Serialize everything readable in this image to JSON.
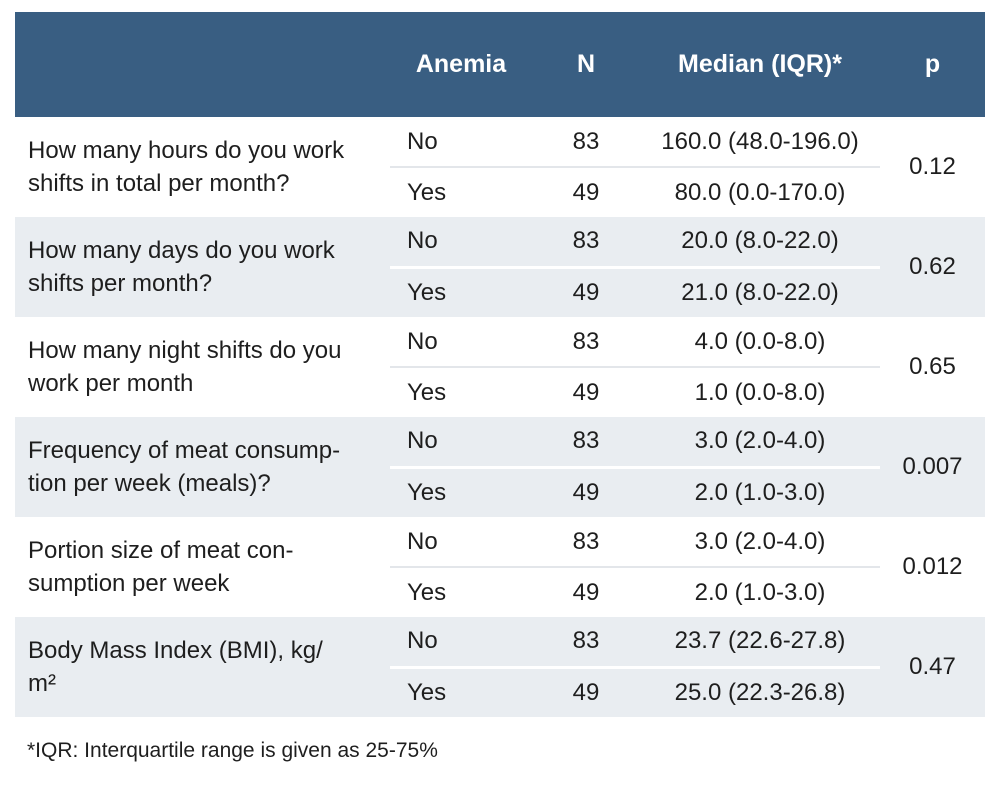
{
  "colors": {
    "header_bg": "#395e82",
    "header_text": "#ffffff",
    "row_alt_bg": "#e9edf1",
    "divider_on_white": "#e3e6ea",
    "divider_on_gray": "#ffffff",
    "body_text": "#1e1e1e"
  },
  "table": {
    "headers": {
      "question": "",
      "anemia": "Anemia",
      "n": "N",
      "median": "Median (IQR)*",
      "p": "p"
    },
    "groups": [
      {
        "question": "How many hours do you work\nshifts in total per month?",
        "p": "0.12",
        "rows": [
          {
            "anemia": "No",
            "n": "83",
            "median": "160.0 (48.0-196.0)"
          },
          {
            "anemia": "Yes",
            "n": "49",
            "median": "80.0 (0.0-170.0)"
          }
        ]
      },
      {
        "question": "How many days do you work\nshifts per month?",
        "p": "0.62",
        "rows": [
          {
            "anemia": "No",
            "n": "83",
            "median": "20.0 (8.0-22.0)"
          },
          {
            "anemia": "Yes",
            "n": "49",
            "median": "21.0 (8.0-22.0)"
          }
        ]
      },
      {
        "question": "How many night shifts do you\nwork per month",
        "p": "0.65",
        "rows": [
          {
            "anemia": "No",
            "n": "83",
            "median": "4.0 (0.0-8.0)"
          },
          {
            "anemia": "Yes",
            "n": "49",
            "median": "1.0 (0.0-8.0)"
          }
        ]
      },
      {
        "question": "Frequency of meat consump-\ntion per week (meals)?",
        "p": "0.007",
        "rows": [
          {
            "anemia": "No",
            "n": "83",
            "median": "3.0 (2.0-4.0)"
          },
          {
            "anemia": "Yes",
            "n": "49",
            "median": "2.0 (1.0-3.0)"
          }
        ]
      },
      {
        "question": "Portion size of meat con-\nsumption per week",
        "p": "0.012",
        "rows": [
          {
            "anemia": "No",
            "n": "83",
            "median": "3.0 (2.0-4.0)"
          },
          {
            "anemia": "Yes",
            "n": "49",
            "median": "2.0 (1.0-3.0)"
          }
        ]
      },
      {
        "question": "Body Mass Index (BMI), kg/\nm²",
        "p": "0.47",
        "rows": [
          {
            "anemia": "No",
            "n": "83",
            "median": "23.7 (22.6-27.8)"
          },
          {
            "anemia": "Yes",
            "n": "49",
            "median": "25.0 (22.3-26.8)"
          }
        ]
      }
    ],
    "footnote": "*IQR: Interquartile range is given as 25-75%"
  },
  "chart_data": {
    "type": "table",
    "columns": [
      "",
      "Anemia",
      "N",
      "Median (IQR)*",
      "p"
    ],
    "rows": [
      [
        "How many hours do you work shifts in total per month?",
        "No",
        83,
        "160.0 (48.0-196.0)",
        0.12
      ],
      [
        "How many hours do you work shifts in total per month?",
        "Yes",
        49,
        "80.0 (0.0-170.0)",
        0.12
      ],
      [
        "How many days do you work shifts per month?",
        "No",
        83,
        "20.0 (8.0-22.0)",
        0.62
      ],
      [
        "How many days do you work shifts per month?",
        "Yes",
        49,
        "21.0 (8.0-22.0)",
        0.62
      ],
      [
        "How many night shifts do you work per month",
        "No",
        83,
        "4.0 (0.0-8.0)",
        0.65
      ],
      [
        "How many night shifts do you work per month",
        "Yes",
        49,
        "1.0 (0.0-8.0)",
        0.65
      ],
      [
        "Frequency of meat consumption per week (meals)?",
        "No",
        83,
        "3.0 (2.0-4.0)",
        0.007
      ],
      [
        "Frequency of meat consumption per week (meals)?",
        "Yes",
        49,
        "2.0 (1.0-3.0)",
        0.007
      ],
      [
        "Portion size of meat consumption per week",
        "No",
        83,
        "3.0 (2.0-4.0)",
        0.012
      ],
      [
        "Portion size of meat consumption per week",
        "Yes",
        49,
        "2.0 (1.0-3.0)",
        0.012
      ],
      [
        "Body Mass Index (BMI), kg/m²",
        "No",
        83,
        "23.7 (22.6-27.8)",
        0.47
      ],
      [
        "Body Mass Index (BMI), kg/m²",
        "Yes",
        49,
        "25.0 (22.3-26.8)",
        0.47
      ]
    ],
    "footnote": "*IQR: Interquartile range is given as 25-75%"
  }
}
